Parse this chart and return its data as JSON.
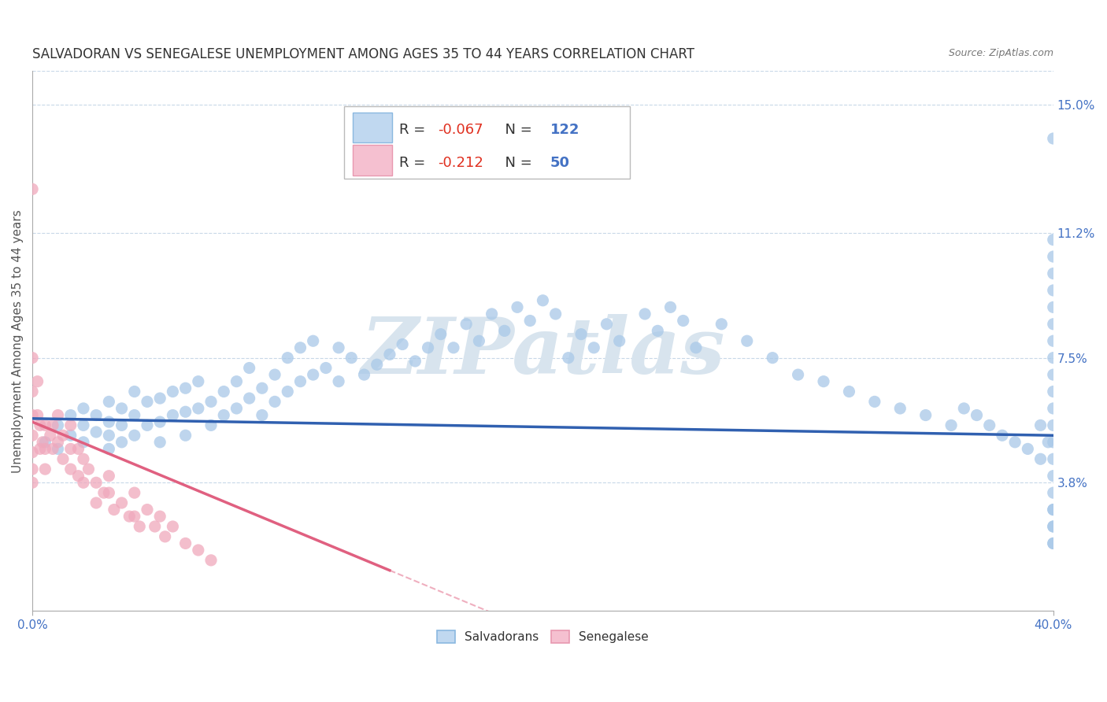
{
  "title": "SALVADORAN VS SENEGALESE UNEMPLOYMENT AMONG AGES 35 TO 44 YEARS CORRELATION CHART",
  "source": "Source: ZipAtlas.com",
  "ylabel": "Unemployment Among Ages 35 to 44 years",
  "xlim": [
    0.0,
    0.4
  ],
  "ylim": [
    0.0,
    0.16
  ],
  "xtick_vals": [
    0.0,
    0.4
  ],
  "xticklabels": [
    "0.0%",
    "40.0%"
  ],
  "yticks_right": [
    0.038,
    0.075,
    0.112,
    0.15
  ],
  "ytick_right_labels": [
    "3.8%",
    "7.5%",
    "11.2%",
    "15.0%"
  ],
  "grid_color": "#c8d8e8",
  "background_color": "#ffffff",
  "salvadoran_color": "#a8c8e8",
  "senegalese_color": "#f0a8bc",
  "trend_salvadoran_color": "#3060b0",
  "trend_senegalese_color": "#e06080",
  "watermark_text": "ZIPatlas",
  "watermark_color": "#d8e4ee",
  "legend_R_salvadoran": "-0.067",
  "legend_N_salvadoran": "122",
  "legend_R_senegalese": "-0.212",
  "legend_N_senegalese": "50",
  "tick_label_color": "#4472c4",
  "title_fontsize": 12,
  "axis_label_fontsize": 11,
  "tick_fontsize": 11,
  "salvadoran_x": [
    0.005,
    0.01,
    0.01,
    0.015,
    0.015,
    0.02,
    0.02,
    0.02,
    0.025,
    0.025,
    0.03,
    0.03,
    0.03,
    0.03,
    0.035,
    0.035,
    0.035,
    0.04,
    0.04,
    0.04,
    0.045,
    0.045,
    0.05,
    0.05,
    0.05,
    0.055,
    0.055,
    0.06,
    0.06,
    0.06,
    0.065,
    0.065,
    0.07,
    0.07,
    0.075,
    0.075,
    0.08,
    0.08,
    0.085,
    0.085,
    0.09,
    0.09,
    0.095,
    0.095,
    0.1,
    0.1,
    0.105,
    0.105,
    0.11,
    0.11,
    0.115,
    0.12,
    0.12,
    0.125,
    0.13,
    0.135,
    0.14,
    0.145,
    0.15,
    0.155,
    0.16,
    0.165,
    0.17,
    0.175,
    0.18,
    0.185,
    0.19,
    0.195,
    0.2,
    0.205,
    0.21,
    0.215,
    0.22,
    0.225,
    0.23,
    0.24,
    0.245,
    0.25,
    0.255,
    0.26,
    0.27,
    0.28,
    0.29,
    0.3,
    0.31,
    0.32,
    0.33,
    0.34,
    0.35,
    0.36,
    0.365,
    0.37,
    0.375,
    0.38,
    0.385,
    0.39,
    0.395,
    0.395,
    0.398,
    0.4,
    0.4,
    0.4,
    0.4,
    0.4,
    0.4,
    0.4,
    0.4,
    0.4,
    0.4,
    0.4,
    0.4,
    0.4,
    0.4,
    0.4,
    0.4,
    0.4,
    0.4,
    0.4,
    0.4,
    0.4,
    0.4,
    0.4
  ],
  "salvadoran_y": [
    0.05,
    0.048,
    0.055,
    0.052,
    0.058,
    0.05,
    0.055,
    0.06,
    0.053,
    0.058,
    0.048,
    0.052,
    0.056,
    0.062,
    0.05,
    0.055,
    0.06,
    0.052,
    0.058,
    0.065,
    0.055,
    0.062,
    0.05,
    0.056,
    0.063,
    0.058,
    0.065,
    0.052,
    0.059,
    0.066,
    0.06,
    0.068,
    0.055,
    0.062,
    0.058,
    0.065,
    0.06,
    0.068,
    0.063,
    0.072,
    0.058,
    0.066,
    0.062,
    0.07,
    0.065,
    0.075,
    0.068,
    0.078,
    0.07,
    0.08,
    0.072,
    0.068,
    0.078,
    0.075,
    0.07,
    0.073,
    0.076,
    0.079,
    0.074,
    0.078,
    0.082,
    0.078,
    0.085,
    0.08,
    0.088,
    0.083,
    0.09,
    0.086,
    0.092,
    0.088,
    0.075,
    0.082,
    0.078,
    0.085,
    0.08,
    0.088,
    0.083,
    0.09,
    0.086,
    0.078,
    0.085,
    0.08,
    0.075,
    0.07,
    0.068,
    0.065,
    0.062,
    0.06,
    0.058,
    0.055,
    0.06,
    0.058,
    0.055,
    0.052,
    0.05,
    0.048,
    0.045,
    0.055,
    0.05,
    0.02,
    0.025,
    0.03,
    0.035,
    0.04,
    0.045,
    0.05,
    0.055,
    0.06,
    0.065,
    0.07,
    0.075,
    0.08,
    0.085,
    0.09,
    0.095,
    0.1,
    0.105,
    0.11,
    0.14,
    0.02,
    0.025,
    0.03
  ],
  "senegalese_x": [
    0.0,
    0.0,
    0.0,
    0.0,
    0.0,
    0.0,
    0.0,
    0.0,
    0.002,
    0.002,
    0.003,
    0.003,
    0.004,
    0.005,
    0.005,
    0.005,
    0.007,
    0.008,
    0.008,
    0.01,
    0.01,
    0.012,
    0.012,
    0.015,
    0.015,
    0.015,
    0.018,
    0.018,
    0.02,
    0.02,
    0.022,
    0.025,
    0.025,
    0.028,
    0.03,
    0.03,
    0.032,
    0.035,
    0.038,
    0.04,
    0.04,
    0.042,
    0.045,
    0.048,
    0.05,
    0.052,
    0.055,
    0.06,
    0.065,
    0.07
  ],
  "senegalese_y": [
    0.125,
    0.075,
    0.065,
    0.058,
    0.052,
    0.047,
    0.042,
    0.038,
    0.068,
    0.058,
    0.055,
    0.048,
    0.05,
    0.055,
    0.048,
    0.042,
    0.052,
    0.055,
    0.048,
    0.058,
    0.05,
    0.052,
    0.045,
    0.055,
    0.048,
    0.042,
    0.048,
    0.04,
    0.045,
    0.038,
    0.042,
    0.038,
    0.032,
    0.035,
    0.04,
    0.035,
    0.03,
    0.032,
    0.028,
    0.035,
    0.028,
    0.025,
    0.03,
    0.025,
    0.028,
    0.022,
    0.025,
    0.02,
    0.018,
    0.015
  ],
  "trend_salv_x0": 0.0,
  "trend_salv_y0": 0.057,
  "trend_salv_x1": 0.4,
  "trend_salv_y1": 0.052,
  "trend_sen_x0": 0.0,
  "trend_sen_y0": 0.056,
  "trend_sen_x1": 0.14,
  "trend_sen_y1": 0.012
}
